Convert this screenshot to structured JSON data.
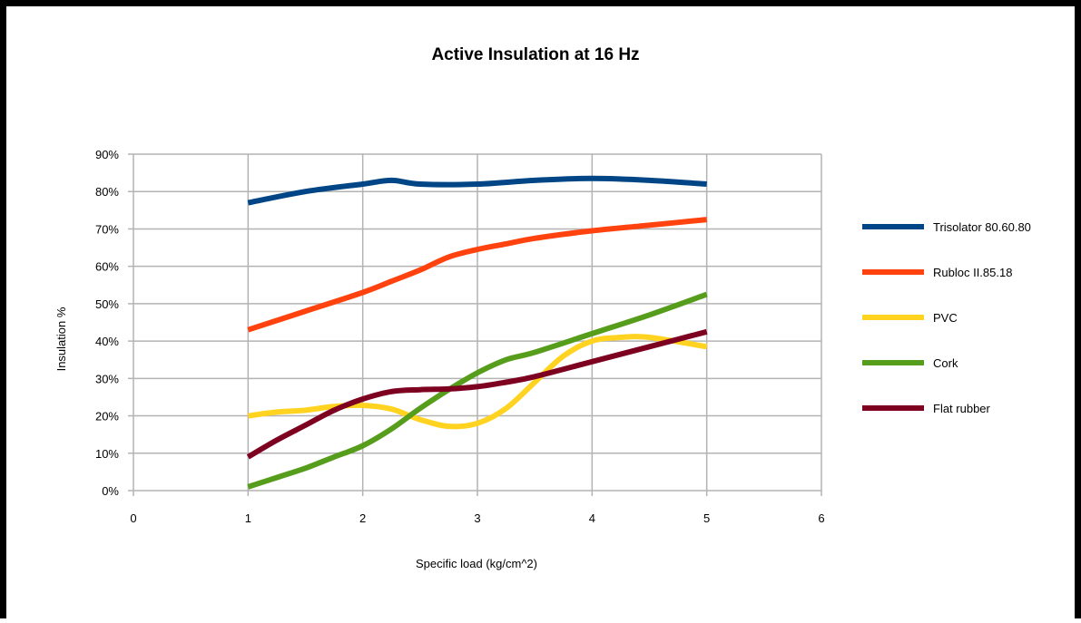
{
  "chart_data": {
    "type": "line",
    "title": "Active Insulation at 16 Hz",
    "xlabel": "Specific load (kg/cm^2)",
    "ylabel": "Insulation %",
    "xlim": [
      0,
      6
    ],
    "ylim": [
      0,
      0.9
    ],
    "x_ticks": [
      "0",
      "1",
      "2",
      "3",
      "4",
      "5",
      "6"
    ],
    "y_ticks": [
      "0%",
      "10%",
      "20%",
      "30%",
      "40%",
      "50%",
      "60%",
      "70%",
      "80%",
      "90%"
    ],
    "grid": true,
    "legend_position": "right",
    "series": [
      {
        "name": "Trisolator 80.60.80",
        "color": "#004586",
        "x": [
          1,
          1.5,
          2,
          2.25,
          2.5,
          3,
          3.5,
          4,
          4.5,
          5
        ],
        "values": [
          0.77,
          0.8,
          0.82,
          0.83,
          0.82,
          0.82,
          0.83,
          0.835,
          0.83,
          0.82
        ]
      },
      {
        "name": "Rubloc II.85.18",
        "color": "#ff420e",
        "x": [
          1,
          1.5,
          2,
          2.25,
          2.5,
          2.75,
          3,
          3.25,
          3.5,
          4,
          4.5,
          5
        ],
        "values": [
          0.43,
          0.48,
          0.53,
          0.56,
          0.59,
          0.625,
          0.645,
          0.66,
          0.675,
          0.695,
          0.71,
          0.725
        ]
      },
      {
        "name": "PVC",
        "color": "#ffd320",
        "x": [
          1,
          1.25,
          1.5,
          1.75,
          2,
          2.25,
          2.5,
          2.75,
          3,
          3.25,
          3.5,
          3.75,
          4,
          4.25,
          4.5,
          5
        ],
        "values": [
          0.2,
          0.21,
          0.215,
          0.225,
          0.228,
          0.218,
          0.19,
          0.172,
          0.18,
          0.22,
          0.29,
          0.36,
          0.4,
          0.41,
          0.41,
          0.385
        ]
      },
      {
        "name": "Cork",
        "color": "#579d1c",
        "x": [
          1,
          1.25,
          1.5,
          1.75,
          2,
          2.25,
          2.5,
          2.75,
          3,
          3.25,
          3.5,
          4,
          4.5,
          5
        ],
        "values": [
          0.01,
          0.035,
          0.06,
          0.09,
          0.12,
          0.165,
          0.22,
          0.27,
          0.315,
          0.35,
          0.37,
          0.42,
          0.47,
          0.525
        ]
      },
      {
        "name": "Flat rubber",
        "color": "#7e0021",
        "x": [
          1,
          1.25,
          1.5,
          1.75,
          2,
          2.25,
          2.5,
          2.75,
          3,
          3.25,
          3.5,
          4,
          4.5,
          5
        ],
        "values": [
          0.09,
          0.135,
          0.175,
          0.215,
          0.245,
          0.265,
          0.27,
          0.272,
          0.278,
          0.29,
          0.305,
          0.345,
          0.385,
          0.425
        ]
      }
    ]
  }
}
